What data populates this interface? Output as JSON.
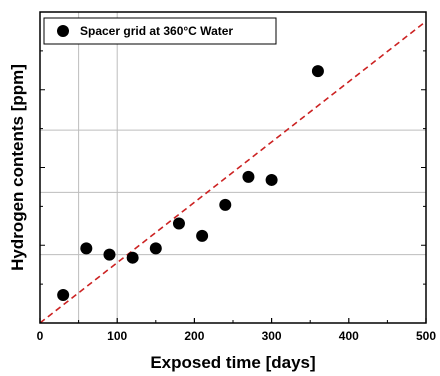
{
  "chart_data": {
    "type": "scatter",
    "title": "",
    "xlabel": "Exposed time [days]",
    "ylabel": "Hydrogen contents [ppm]",
    "xlim": [
      0,
      500
    ],
    "xticks": [
      0,
      100,
      200,
      300,
      400,
      500
    ],
    "y_tick_labels_shown": false,
    "legend": {
      "position": "top-left",
      "entries": [
        "Spacer grid at 360°C Water"
      ]
    },
    "grid": {
      "vertical_at_x": [
        50,
        100
      ],
      "horizontal_at_y_units": [
        0.22,
        0.42,
        0.62
      ]
    },
    "series": [
      {
        "name": "Spacer grid at 360°C Water",
        "marker": "filled-circle",
        "color": "#000000",
        "points": [
          {
            "x": 30,
            "y": 0.09
          },
          {
            "x": 60,
            "y": 0.24
          },
          {
            "x": 90,
            "y": 0.22
          },
          {
            "x": 120,
            "y": 0.21
          },
          {
            "x": 150,
            "y": 0.24
          },
          {
            "x": 180,
            "y": 0.32
          },
          {
            "x": 210,
            "y": 0.28
          },
          {
            "x": 240,
            "y": 0.38
          },
          {
            "x": 270,
            "y": 0.47
          },
          {
            "x": 300,
            "y": 0.46
          },
          {
            "x": 360,
            "y": 0.81
          }
        ]
      }
    ],
    "trendline": {
      "style": "dashed",
      "color": "#cc2222",
      "x_start": 0,
      "y_start": 0.0,
      "x_end": 500,
      "y_end": 0.97
    },
    "y_unit_note": "y values in relative units (0 = bottom of axes, 1 = top of axes)"
  }
}
